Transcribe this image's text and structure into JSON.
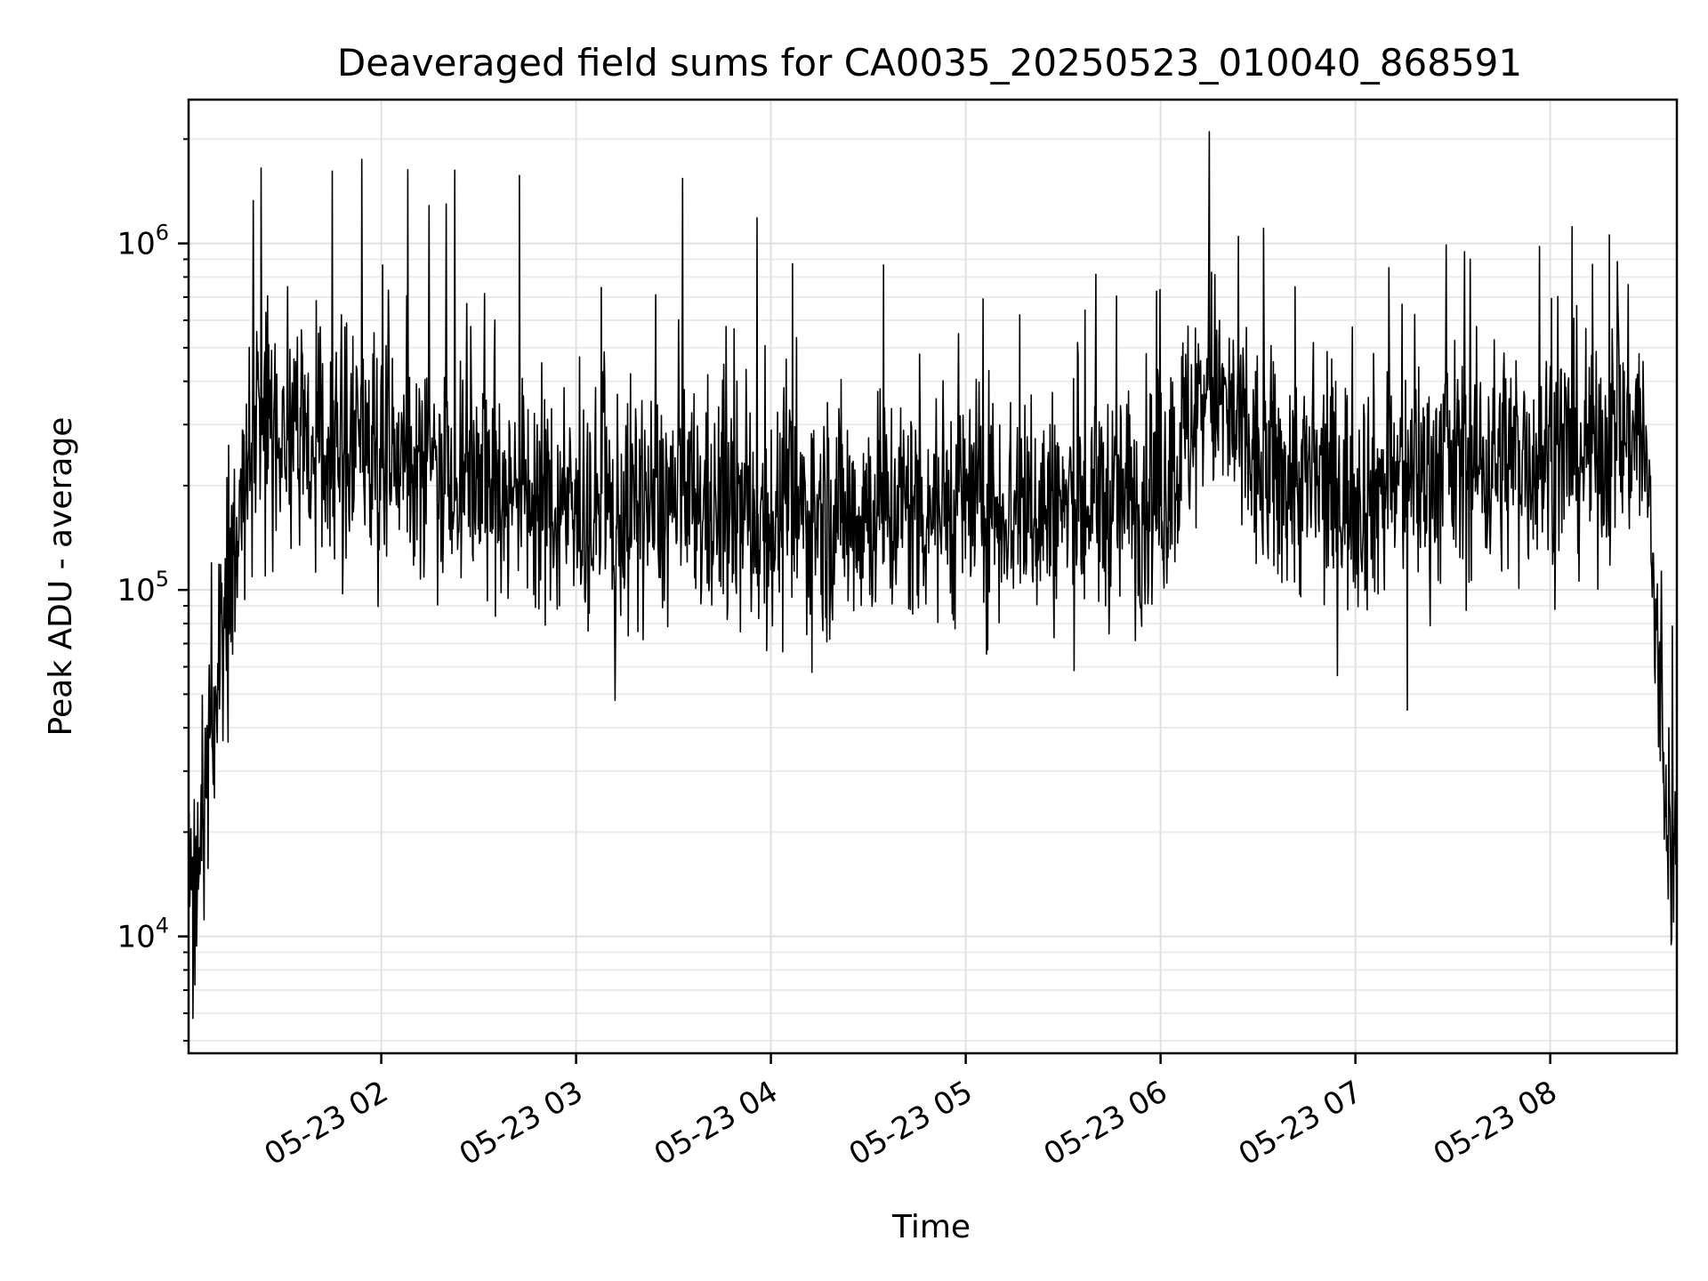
{
  "chart_data": {
    "type": "line",
    "title": "Deaveraged field sums for CA0035_20250523_010040_868591",
    "xlabel": "Time",
    "ylabel": "Peak ADU - average",
    "y_scale": "log",
    "ylim": [
      4600,
      2600000
    ],
    "xlim": [
      "2025-05-23 01:00:40",
      "2025-05-23 08:39:00"
    ],
    "grid": true,
    "line_color": "#000000",
    "x_ticks": [
      {
        "value": "2025-05-23 02:00",
        "label": "05-23 02"
      },
      {
        "value": "2025-05-23 03:00",
        "label": "05-23 03"
      },
      {
        "value": "2025-05-23 04:00",
        "label": "05-23 04"
      },
      {
        "value": "2025-05-23 05:00",
        "label": "05-23 05"
      },
      {
        "value": "2025-05-23 06:00",
        "label": "05-23 06"
      },
      {
        "value": "2025-05-23 07:00",
        "label": "05-23 07"
      },
      {
        "value": "2025-05-23 08:00",
        "label": "05-23 08"
      }
    ],
    "y_ticks": [
      {
        "value": 10000,
        "label_base": "10",
        "label_exp": "4"
      },
      {
        "value": 100000,
        "label_base": "10",
        "label_exp": "5"
      },
      {
        "value": 1000000,
        "label_base": "10",
        "label_exp": "6"
      }
    ],
    "series": [
      {
        "x": [
          "2025-05-23 01:00:40",
          "2025-05-23 01:02",
          "2025-05-23 01:04",
          "2025-05-23 01:06",
          "2025-05-23 01:08",
          "2025-05-23 01:10",
          "2025-05-23 01:13",
          "2025-05-23 01:16",
          "2025-05-23 01:20",
          "2025-05-23 01:25",
          "2025-05-23 01:30",
          "2025-05-23 01:40",
          "2025-05-23 01:50",
          "2025-05-23 02:00",
          "2025-05-23 02:30",
          "2025-05-23 03:00",
          "2025-05-23 03:30",
          "2025-05-23 04:00",
          "2025-05-23 04:30",
          "2025-05-23 05:00",
          "2025-05-23 05:30",
          "2025-05-23 06:00",
          "2025-05-23 06:15",
          "2025-05-23 06:30",
          "2025-05-23 07:00",
          "2025-05-23 07:30",
          "2025-05-23 08:00",
          "2025-05-23 08:15",
          "2025-05-23 08:28",
          "2025-05-23 08:31",
          "2025-05-23 08:33",
          "2025-05-23 08:35",
          "2025-05-23 08:37",
          "2025-05-23 08:39"
        ],
        "y": [
          12000,
          15000,
          20000,
          30000,
          45000,
          70000,
          100000,
          150000,
          250000,
          320000,
          300000,
          260000,
          240000,
          250000,
          220000,
          160000,
          180000,
          160000,
          170000,
          180000,
          170000,
          190000,
          400000,
          220000,
          190000,
          230000,
          250000,
          260000,
          300000,
          150000,
          60000,
          30000,
          20000,
          15000
        ],
        "peaks": [
          {
            "x": "2025-05-23 01:23",
            "y": 1650000
          },
          {
            "x": "2025-05-23 01:54",
            "y": 1750000
          },
          {
            "x": "2025-05-23 02:20",
            "y": 1300000
          },
          {
            "x": "2025-05-23 06:15",
            "y": 2100000
          },
          {
            "x": "2025-05-23 08:13",
            "y": 870000
          }
        ],
        "dips": [
          {
            "x": "2025-05-23 01:02",
            "y": 5800
          },
          {
            "x": "2025-05-23 03:12",
            "y": 48000
          },
          {
            "x": "2025-05-23 07:16",
            "y": 45000
          },
          {
            "x": "2025-05-23 08:38",
            "y": 11000
          }
        ]
      }
    ]
  }
}
